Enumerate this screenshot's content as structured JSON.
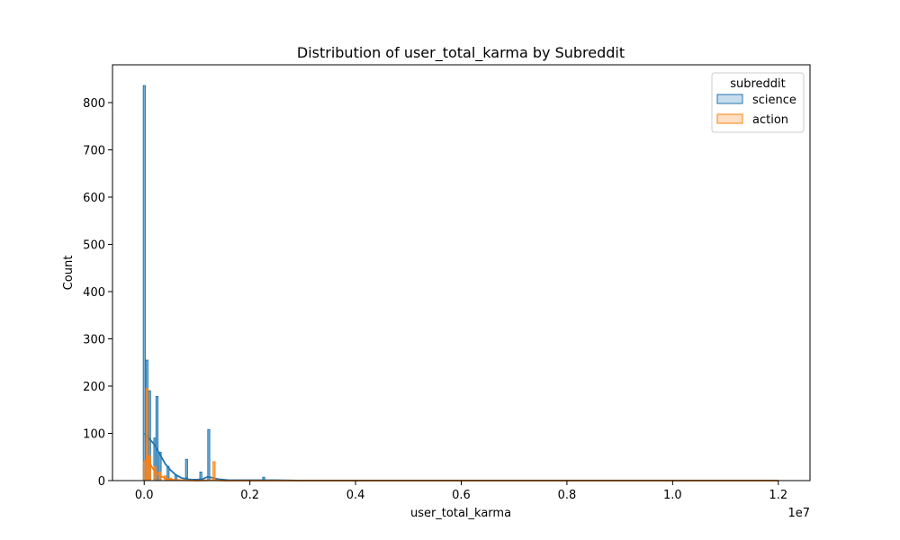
{
  "chart_data": {
    "type": "histogram",
    "title": "Distribution of user_total_karma by Subreddit",
    "xlabel": "user_total_karma",
    "ylabel": "Count",
    "x_offset_label": "1e7",
    "xlim": [
      -0.06,
      1.26
    ],
    "ylim": [
      0,
      880
    ],
    "x_ticks": [
      0.0,
      0.2,
      0.4,
      0.6,
      0.8,
      1.0,
      1.2
    ],
    "x_tick_labels": [
      "0.0",
      "0.2",
      "0.4",
      "0.6",
      "0.8",
      "1.0",
      "1.2"
    ],
    "y_ticks": [
      0,
      100,
      200,
      300,
      400,
      500,
      600,
      700,
      800
    ],
    "y_tick_labels": [
      "0",
      "100",
      "200",
      "300",
      "400",
      "500",
      "600",
      "700",
      "800"
    ],
    "grid": false,
    "legend": {
      "title": "subreddit",
      "placement": "top-right"
    },
    "series": [
      {
        "name": "science",
        "color": "#1f77b4",
        "bars": [
          {
            "x": 0.0,
            "y": 836
          },
          {
            "x": 0.005,
            "y": 255
          },
          {
            "x": 0.01,
            "y": 190
          },
          {
            "x": 0.02,
            "y": 90
          },
          {
            "x": 0.03,
            "y": 60
          },
          {
            "x": 0.045,
            "y": 30
          },
          {
            "x": 0.06,
            "y": 12
          },
          {
            "x": 0.08,
            "y": 6
          },
          {
            "x": 0.11,
            "y": 3
          },
          {
            "x": 0.15,
            "y": 2
          },
          {
            "x": 0.024,
            "y": 178
          },
          {
            "x": 0.08,
            "y": 45
          },
          {
            "x": 0.107,
            "y": 18
          },
          {
            "x": 0.122,
            "y": 108
          },
          {
            "x": 0.226,
            "y": 7
          }
        ],
        "kde": [
          [
            0.0,
            100
          ],
          [
            0.005,
            95
          ],
          [
            0.01,
            88
          ],
          [
            0.015,
            82
          ],
          [
            0.02,
            75
          ],
          [
            0.03,
            55
          ],
          [
            0.04,
            35
          ],
          [
            0.05,
            22
          ],
          [
            0.06,
            12
          ],
          [
            0.07,
            6
          ],
          [
            0.08,
            3
          ],
          [
            0.09,
            2
          ],
          [
            0.1,
            2
          ],
          [
            0.11,
            3
          ],
          [
            0.12,
            8
          ],
          [
            0.13,
            6
          ],
          [
            0.14,
            3
          ],
          [
            0.16,
            1
          ],
          [
            0.2,
            1
          ],
          [
            0.25,
            1
          ],
          [
            0.3,
            0
          ],
          [
            1.2,
            0
          ]
        ]
      },
      {
        "name": "action",
        "color": "#ff7f0e",
        "bars": [
          {
            "x": 0.0,
            "y": 40
          },
          {
            "x": 0.005,
            "y": 195
          },
          {
            "x": 0.01,
            "y": 52
          },
          {
            "x": 0.02,
            "y": 30
          },
          {
            "x": 0.03,
            "y": 18
          },
          {
            "x": 0.04,
            "y": 10
          },
          {
            "x": 0.05,
            "y": 5
          },
          {
            "x": 0.132,
            "y": 40
          }
        ],
        "kde": [
          [
            0.0,
            40
          ],
          [
            0.005,
            45
          ],
          [
            0.01,
            38
          ],
          [
            0.015,
            28
          ],
          [
            0.02,
            20
          ],
          [
            0.03,
            10
          ],
          [
            0.04,
            5
          ],
          [
            0.05,
            2
          ],
          [
            0.07,
            1
          ],
          [
            0.1,
            0
          ],
          [
            0.13,
            1
          ],
          [
            0.15,
            0
          ],
          [
            1.2,
            0
          ]
        ]
      }
    ]
  }
}
